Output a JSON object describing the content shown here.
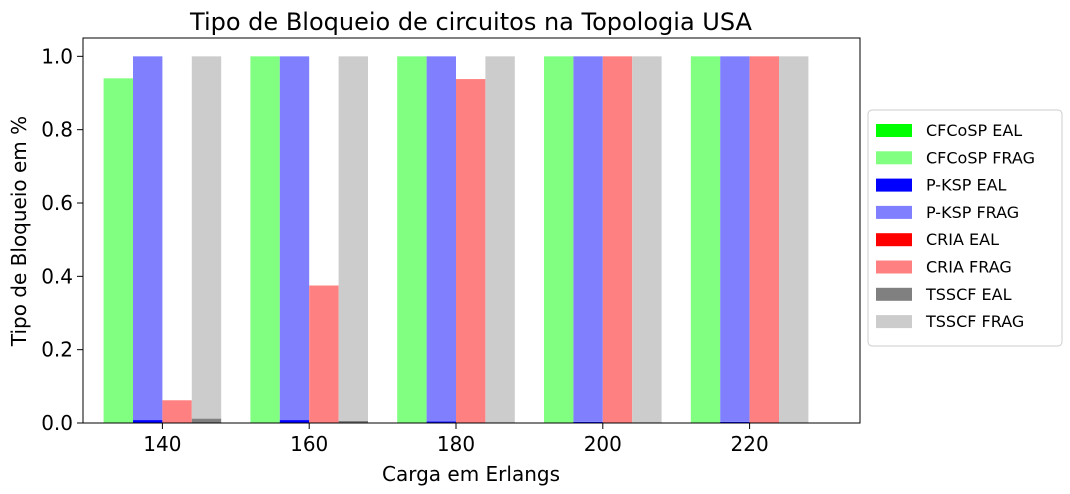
{
  "chart_data": {
    "type": "bar",
    "title": "Tipo de Bloqueio de circuitos na Topologia USA",
    "xlabel": "Carga em Erlangs",
    "ylabel": "Tipo de Bloqueio em %",
    "categories": [
      "140",
      "160",
      "180",
      "200",
      "220"
    ],
    "ylim": [
      0,
      1.05
    ],
    "yticks": [
      "0.0",
      "0.2",
      "0.4",
      "0.6",
      "0.8",
      "1.0"
    ],
    "grid": false,
    "legend_position": "right",
    "stacked_pairs": true,
    "series": [
      {
        "name": "CFCoSP EAL",
        "color": "#00ff00",
        "values": [
          0,
          0,
          0,
          0.002,
          0.002
        ]
      },
      {
        "name": "CFCoSP FRAG",
        "color": "#80ff80",
        "values": [
          0.94,
          1.0,
          1.0,
          0.998,
          0.998
        ]
      },
      {
        "name": "P-KSP EAL",
        "color": "#0000ff",
        "values": [
          0.008,
          0.008,
          0.004,
          0.003,
          0.003
        ]
      },
      {
        "name": "P-KSP FRAG",
        "color": "#8080ff",
        "values": [
          0.992,
          0.992,
          0.996,
          0.997,
          0.997
        ]
      },
      {
        "name": "CRIA EAL",
        "color": "#ff0000",
        "values": [
          0,
          0,
          0,
          0,
          0
        ]
      },
      {
        "name": "CRIA FRAG",
        "color": "#ff8080",
        "values": [
          0.062,
          0.375,
          0.938,
          1.0,
          1.0
        ]
      },
      {
        "name": "TSSCF EAL",
        "color": "#808080",
        "values": [
          0.012,
          0.006,
          0.002,
          0.002,
          0.002
        ]
      },
      {
        "name": "TSSCF FRAG",
        "color": "#cccccc",
        "values": [
          0.988,
          0.994,
          0.998,
          0.998,
          0.998
        ]
      }
    ]
  }
}
